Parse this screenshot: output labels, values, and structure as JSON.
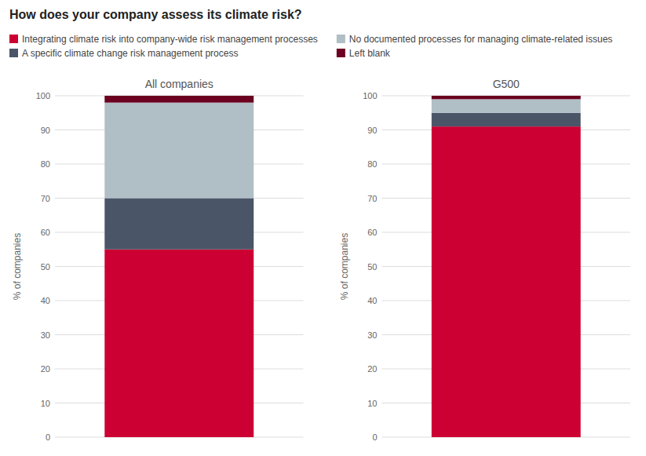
{
  "title": "How does your company assess its climate risk?",
  "chart_data": [
    {
      "type": "bar",
      "title": "All companies",
      "stacked": true,
      "grid": true,
      "legend": "top-left",
      "ylabel": "% of companies",
      "ylim": [
        0,
        100
      ],
      "yticks": [
        0,
        10,
        20,
        30,
        40,
        50,
        60,
        70,
        80,
        90,
        100
      ],
      "categories": [
        null
      ],
      "series": [
        {
          "name": "Integrating climate risk into company-wide risk management processes",
          "color": "#cc0033",
          "values": [
            55
          ]
        },
        {
          "name": "A specific climate change risk management process",
          "color": "#4a5568",
          "values": [
            15
          ]
        },
        {
          "name": "No documented processes for managing climate-related issues",
          "color": "#b0bec5",
          "values": [
            28
          ]
        },
        {
          "name": "Left blank",
          "color": "#6b0020",
          "values": [
            2
          ]
        }
      ]
    },
    {
      "type": "bar",
      "title": "G500",
      "stacked": true,
      "grid": true,
      "ylabel": "% of companies",
      "ylim": [
        0,
        100
      ],
      "yticks": [
        0,
        10,
        20,
        30,
        40,
        50,
        60,
        70,
        80,
        90,
        100
      ],
      "categories": [
        null
      ],
      "series": [
        {
          "name": "Integrating climate risk into company-wide risk management processes",
          "color": "#cc0033",
          "values": [
            91
          ]
        },
        {
          "name": "A specific climate change risk management process",
          "color": "#4a5568",
          "values": [
            4
          ]
        },
        {
          "name": "No documented processes for managing climate-related issues",
          "color": "#b0bec5",
          "values": [
            4
          ]
        },
        {
          "name": "Left blank",
          "color": "#6b0020",
          "values": [
            1
          ]
        }
      ]
    }
  ]
}
